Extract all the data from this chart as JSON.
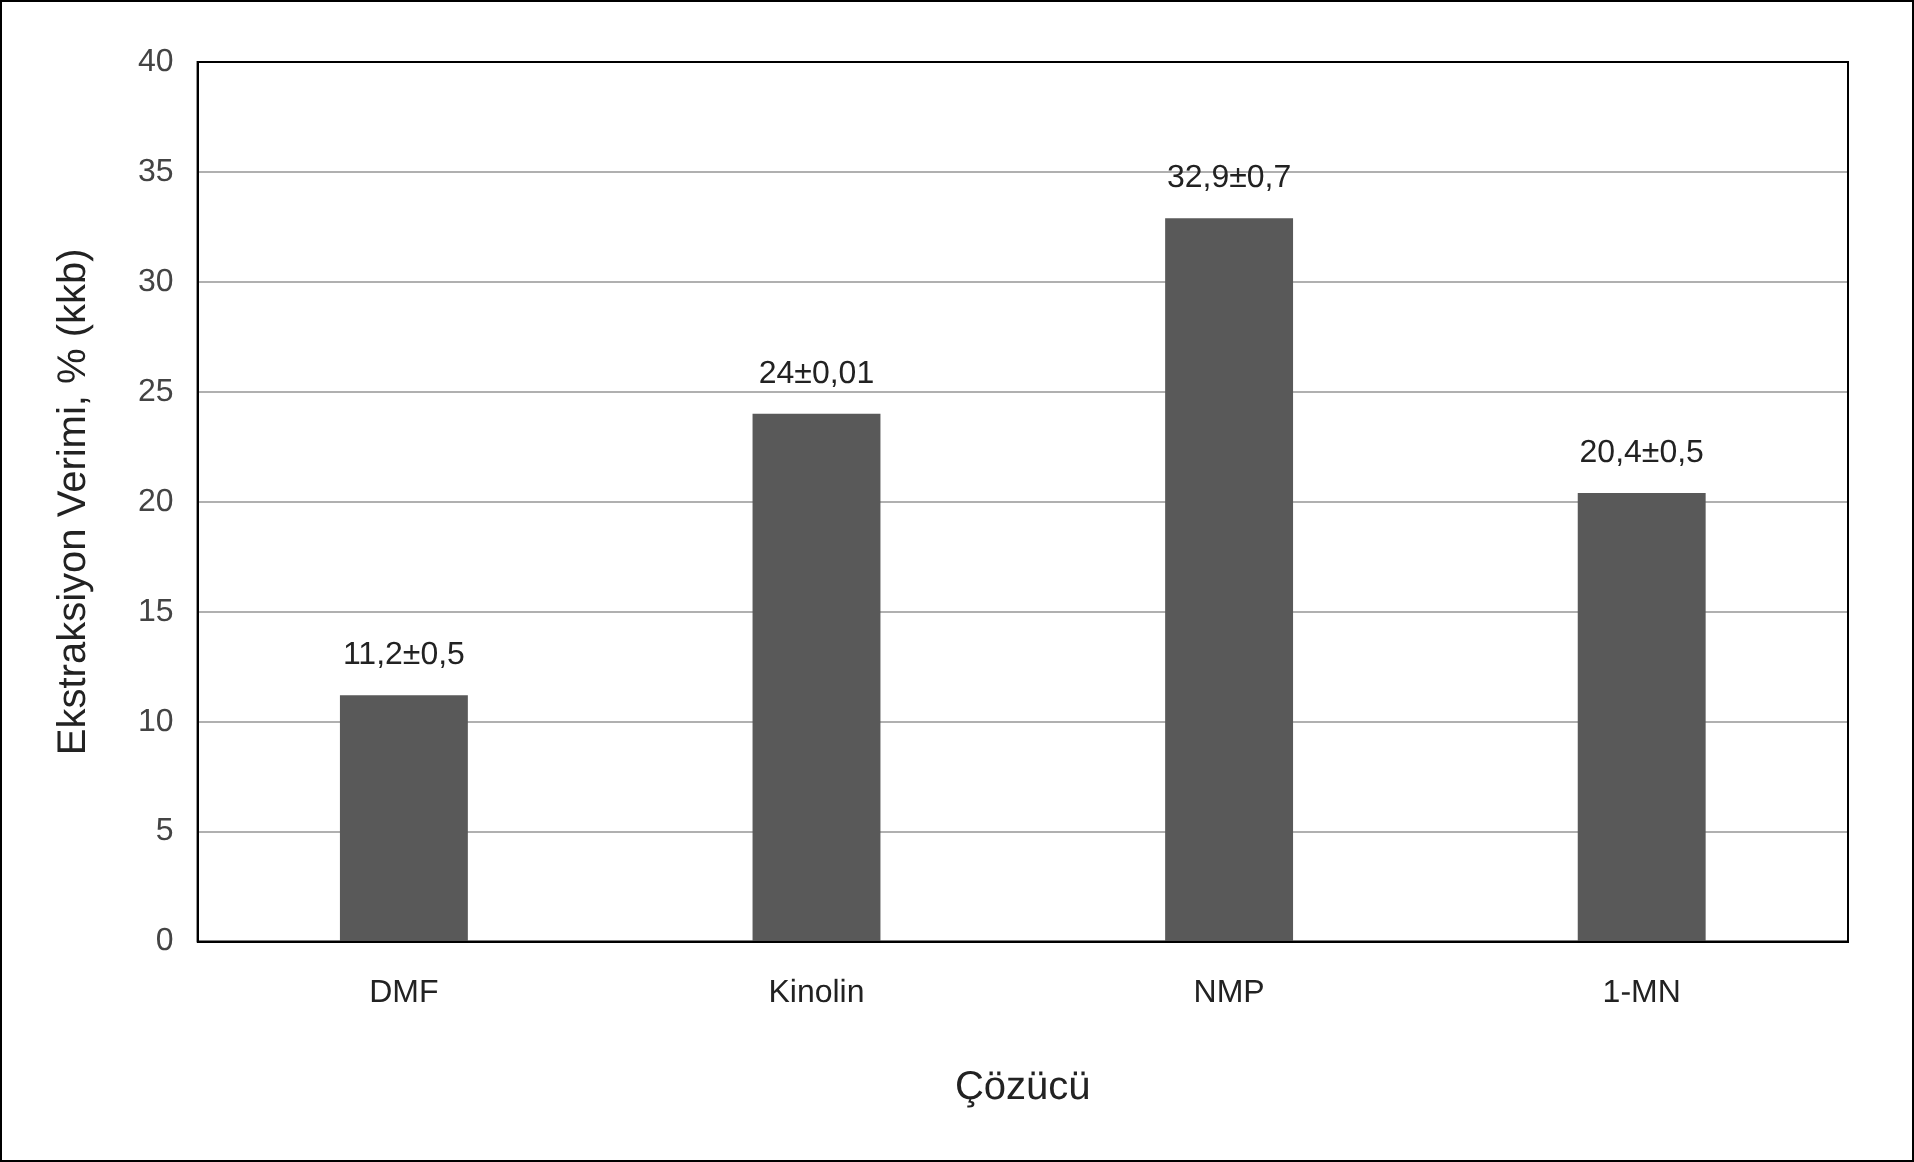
{
  "chart_data": {
    "type": "bar",
    "xlabel": "Çözücü",
    "ylabel": "Ekstraksiyon Verimi, % (kkb)",
    "categories": [
      "DMF",
      "Kinolin",
      "NMP",
      "1-MN"
    ],
    "values": [
      11.2,
      24,
      32.9,
      20.4
    ],
    "color": "#595959",
    "value_labels": [
      "11,2±0,5",
      "24±0,01",
      "32,9±0,7",
      "20,4±0,5"
    ],
    "ylim": [
      0,
      40
    ],
    "yticks": [
      0,
      5,
      10,
      15,
      20,
      25,
      30,
      35,
      40
    ],
    "grid": "y",
    "legend": false
  }
}
